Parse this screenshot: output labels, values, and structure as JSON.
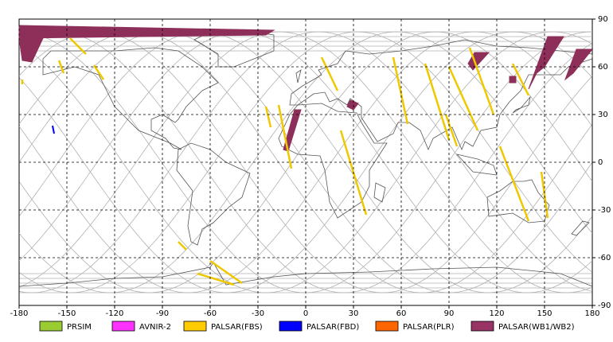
{
  "map": {
    "lon_ticks": [
      -180,
      -150,
      -120,
      -90,
      -60,
      -30,
      0,
      30,
      60,
      90,
      120,
      150,
      180
    ],
    "lat_ticks": [
      90,
      60,
      30,
      0,
      -30,
      -60,
      -90
    ],
    "legend": [
      {
        "name": "PRSIM",
        "color": "#99cc33"
      },
      {
        "name": "AVNIR-2",
        "color": "#ff33ff"
      },
      {
        "name": "PALSAR(FBS)",
        "color": "#ffcc00"
      },
      {
        "name": "PALSAR(FBD)",
        "color": "#0000ff"
      },
      {
        "name": "PALSAR(PLR)",
        "color": "#ff6600"
      },
      {
        "name": "PALSAR(WB1/WB2)",
        "color": "#993366"
      }
    ]
  }
}
